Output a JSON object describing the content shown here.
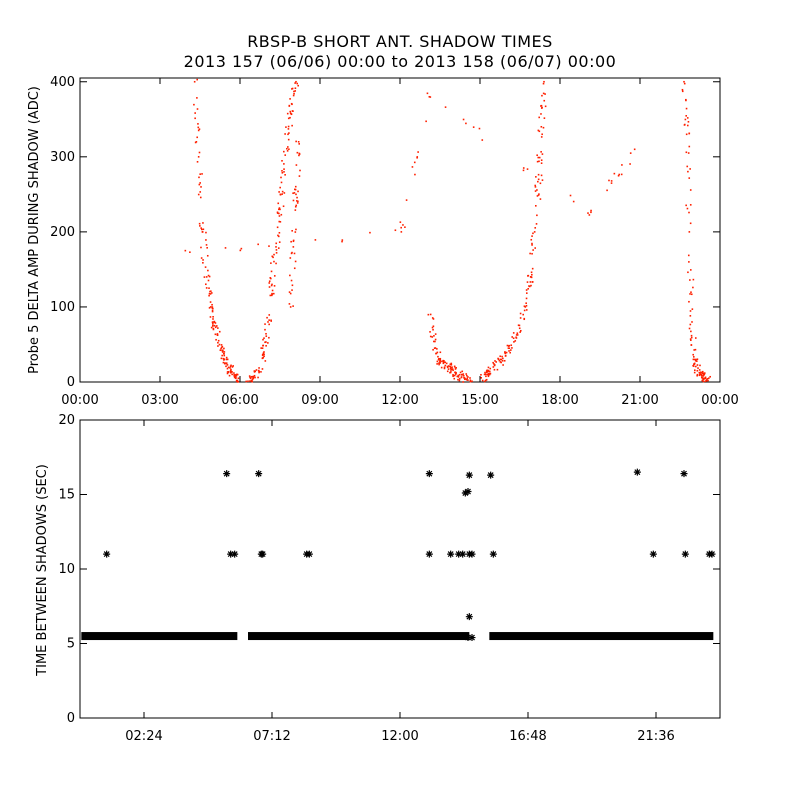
{
  "title_line1": "RBSP-B SHORT ANT. SHADOW TIMES",
  "title_line2": "2013 157 (06/06) 00:00 to 2013 158 (06/07) 00:00",
  "chart_data": [
    {
      "type": "scatter",
      "ylabel": "Probe 5 DELTA AMP DURING SHADOW (ADC)",
      "xlabel": "",
      "x_units": "hours",
      "xlim": [
        0,
        24
      ],
      "ylim": [
        0,
        405
      ],
      "xticks": [
        0,
        3,
        6,
        9,
        12,
        15,
        18,
        21,
        24
      ],
      "xticklabels": [
        "00:00",
        "03:00",
        "06:00",
        "09:00",
        "12:00",
        "15:00",
        "18:00",
        "21:00",
        "00:00"
      ],
      "yticks": [
        0,
        100,
        200,
        300,
        400
      ],
      "yticklabels": [
        "0",
        "100",
        "200",
        "300",
        "400"
      ],
      "marker_color": "#ff2000",
      "series": [
        {
          "x": [
            4.3,
            4.45,
            4.6,
            4.75,
            4.9,
            5.05,
            5.2,
            5.35,
            5.5,
            5.65,
            5.8,
            5.9
          ],
          "y": [
            400,
            300,
            200,
            140,
            100,
            75,
            55,
            40,
            25,
            15,
            6,
            2
          ]
        },
        {
          "x": [
            6.3,
            6.5,
            6.7,
            6.9,
            7.05,
            7.2,
            7.35,
            7.5,
            7.65,
            7.8,
            7.95,
            8.1
          ],
          "y": [
            1,
            5,
            15,
            40,
            80,
            130,
            180,
            230,
            280,
            330,
            370,
            400
          ]
        },
        {
          "x": [
            7.9,
            8.0,
            8.1,
            8.2
          ],
          "y": [
            100,
            180,
            250,
            320
          ]
        },
        {
          "x": [
            13.15,
            13.3,
            13.5,
            13.7,
            13.9,
            14.1,
            14.3,
            14.5,
            14.7
          ],
          "y": [
            90,
            45,
            28,
            22,
            18,
            12,
            6,
            3,
            1
          ]
        },
        {
          "x": [
            15.1,
            15.3,
            15.5,
            15.8,
            16.1,
            16.4,
            16.7,
            16.9,
            17.05,
            17.2,
            17.3,
            17.4
          ],
          "y": [
            2,
            10,
            20,
            30,
            45,
            65,
            100,
            140,
            200,
            270,
            340,
            400
          ]
        },
        {
          "x": [
            22.65,
            22.75,
            22.85,
            22.95,
            23.05,
            23.15,
            23.3,
            23.45,
            23.55
          ],
          "y": [
            400,
            330,
            200,
            80,
            30,
            15,
            10,
            5,
            2
          ]
        },
        {
          "x": [
            3.95,
            12.05,
            13.1,
            19.05,
            20.8
          ],
          "y": [
            175,
            200,
            380,
            225,
            310
          ]
        }
      ]
    },
    {
      "type": "scatter",
      "ylabel": "TIME BETWEEN SHADOWS (SEC)",
      "xlabel": "",
      "x_units": "hours",
      "xlim": [
        0,
        24
      ],
      "ylim": [
        0,
        20
      ],
      "xticks": [
        2.4,
        7.2,
        12.0,
        16.8,
        21.6
      ],
      "xticklabels": [
        "02:24",
        "07:12",
        "12:00",
        "16:48",
        "21:36"
      ],
      "yticks": [
        0,
        5,
        10,
        15,
        20
      ],
      "yticklabels": [
        "0",
        "5",
        "10",
        "15",
        "20"
      ],
      "marker": "asterisk",
      "marker_color": "#000000",
      "baseline": {
        "y": 5.5,
        "segments": [
          [
            0.05,
            5.9
          ],
          [
            6.3,
            14.6
          ],
          [
            15.35,
            23.75
          ]
        ]
      },
      "points": {
        "x": [
          1.0,
          5.5,
          5.65,
          5.8,
          6.7,
          6.8,
          6.85,
          8.5,
          8.6,
          13.1,
          13.1,
          13.9,
          14.2,
          14.35,
          14.45,
          14.55,
          14.6,
          14.6,
          14.7,
          15.4,
          15.5,
          20.9,
          21.5,
          22.65,
          22.7,
          23.6,
          23.7,
          14.6,
          14.55,
          14.7
        ],
        "y": [
          11,
          16.4,
          11,
          11,
          16.4,
          11,
          11,
          11,
          11,
          16.4,
          11,
          11,
          11,
          11,
          15.1,
          15.2,
          16.3,
          11,
          11,
          16.3,
          11,
          16.5,
          11,
          16.4,
          11,
          11,
          11,
          6.8,
          5.4,
          5.4
        ]
      }
    }
  ]
}
